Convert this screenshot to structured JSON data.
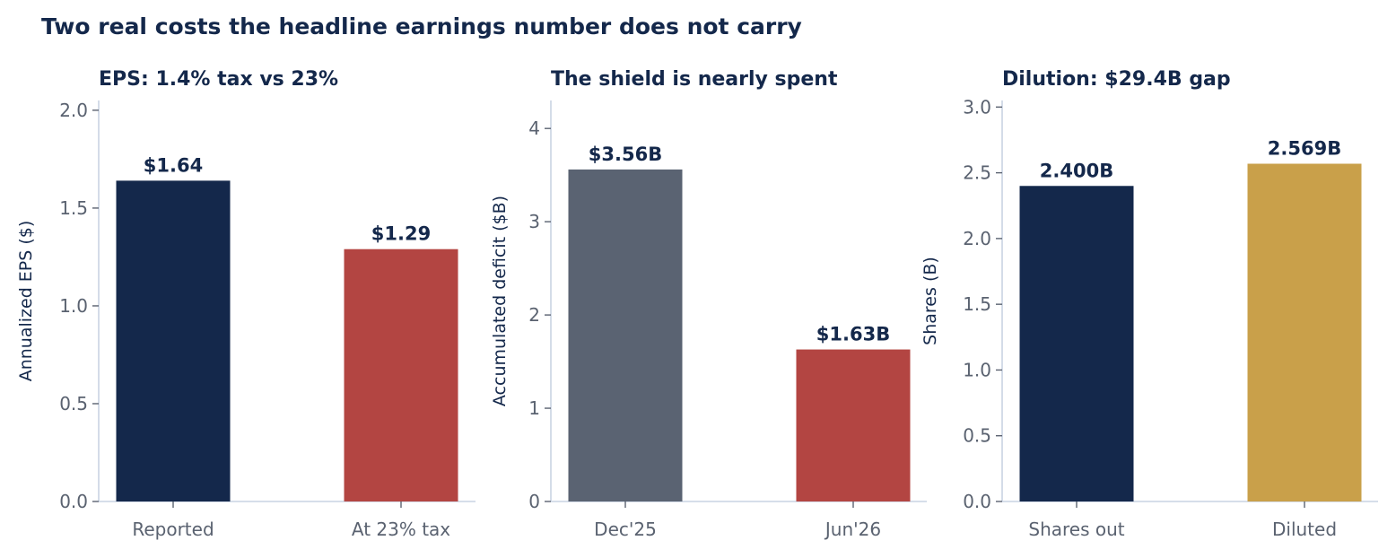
{
  "suptitle": "Two real costs the headline earnings number does not carry",
  "colors": {
    "title": "#14284b",
    "tick_text": "#5a6270",
    "axis": "#c9d3e3",
    "navy": "#14284b",
    "red": "#b34542",
    "slate": "#5a6372",
    "gold": "#c9a04a"
  },
  "chart_data": [
    {
      "type": "bar",
      "title": "EPS: 1.4% tax vs 23%",
      "categories": [
        "Reported",
        "At 23% tax"
      ],
      "values": [
        1.64,
        1.29
      ],
      "value_labels": [
        "$1.64",
        "$1.29"
      ],
      "bar_colors": [
        "navy",
        "red"
      ],
      "xlabel": "",
      "ylabel": "Annualized EPS ($)",
      "ylim": [
        0,
        2.05
      ],
      "yticks": [
        0,
        0.5,
        1.0,
        1.5,
        2.0
      ],
      "ytick_labels": [
        "0.0",
        "0.5",
        "1.0",
        "1.5",
        "2.0"
      ],
      "grid": false,
      "legend": "none"
    },
    {
      "type": "bar",
      "title": "The shield is nearly spent",
      "categories": [
        "Dec'25",
        "Jun'26"
      ],
      "values": [
        3.56,
        1.63
      ],
      "value_labels": [
        "$3.56B",
        "$1.63B"
      ],
      "bar_colors": [
        "slate",
        "red"
      ],
      "xlabel": "",
      "ylabel": "Accumulated deficit ($B)",
      "ylim": [
        0,
        4.3
      ],
      "yticks": [
        0,
        1,
        2,
        3,
        4
      ],
      "ytick_labels": [
        "0",
        "1",
        "2",
        "3",
        "4"
      ],
      "grid": false,
      "legend": "none"
    },
    {
      "type": "bar",
      "title": "Dilution: $29.4B gap",
      "categories": [
        "Shares out",
        "Diluted"
      ],
      "values": [
        2.4,
        2.569
      ],
      "value_labels": [
        "2.400B",
        "2.569B"
      ],
      "bar_colors": [
        "navy",
        "gold"
      ],
      "xlabel": "",
      "ylabel": "Shares (B)",
      "ylim": [
        0,
        3.05
      ],
      "yticks": [
        0,
        0.5,
        1.0,
        1.5,
        2.0,
        2.5,
        3.0
      ],
      "ytick_labels": [
        "0.0",
        "0.5",
        "1.0",
        "1.5",
        "2.0",
        "2.5",
        "3.0"
      ],
      "grid": false,
      "legend": "none"
    }
  ]
}
